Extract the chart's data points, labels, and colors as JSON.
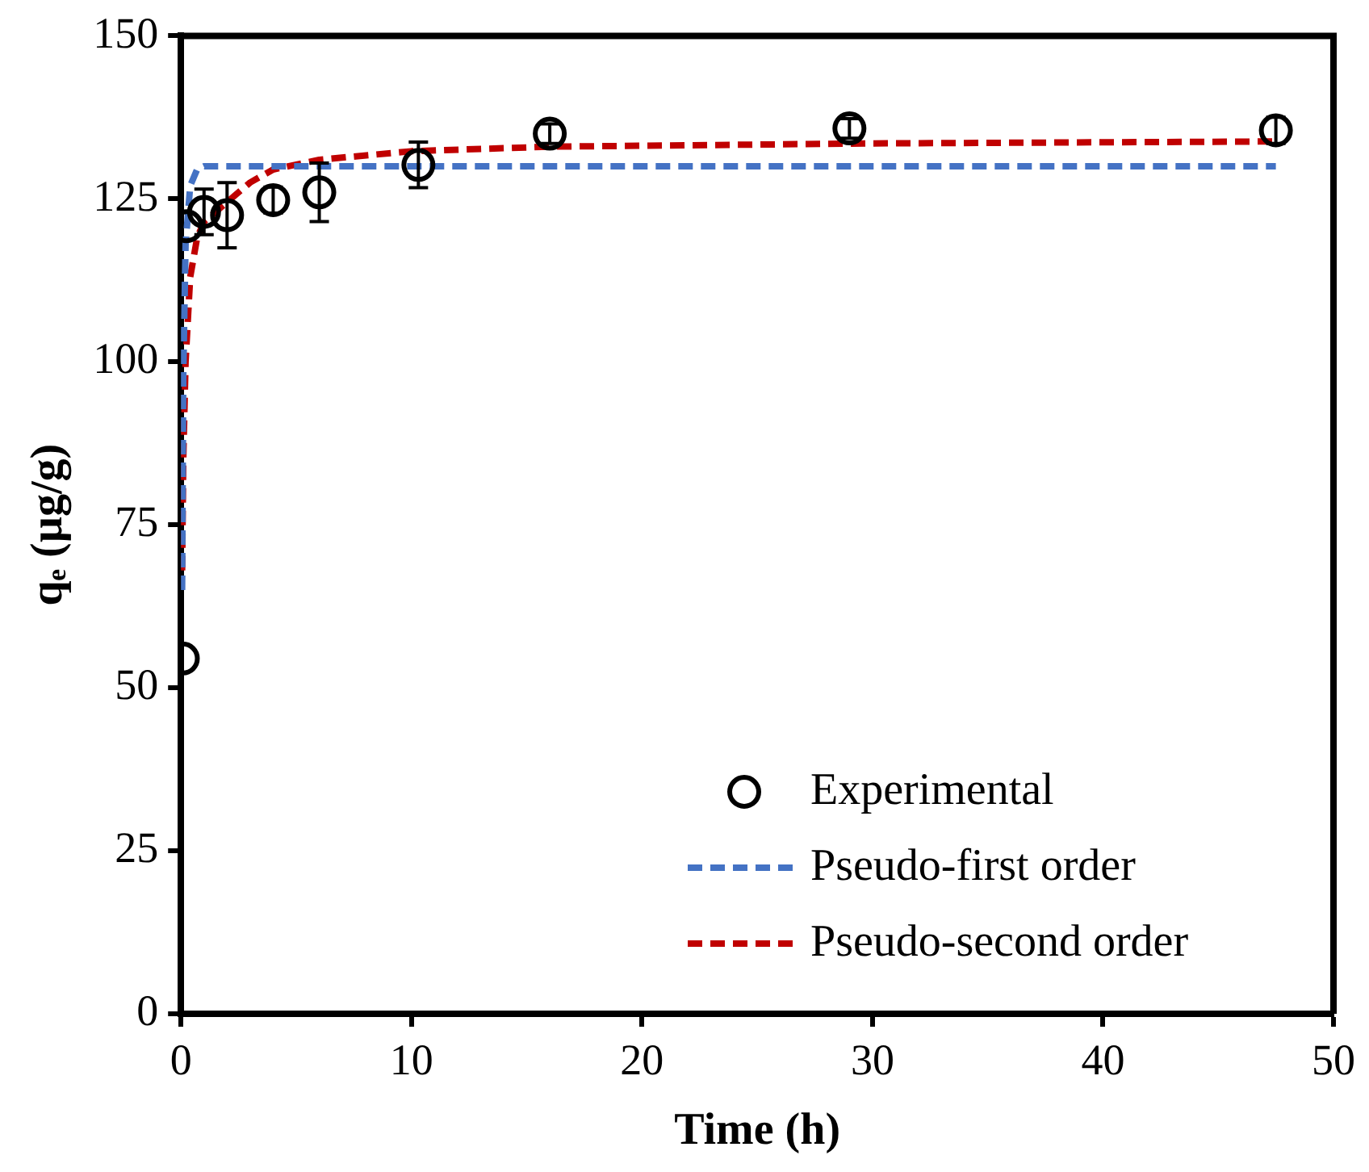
{
  "chart_data": {
    "type": "scatter",
    "xlabel": "Time (h)",
    "ylabel": "qₑ (µg/g)",
    "xlim": [
      0,
      50
    ],
    "xticks": [
      0,
      10,
      20,
      30,
      40,
      50
    ],
    "ylim": [
      0,
      150
    ],
    "yticks": [
      0,
      25,
      50,
      75,
      100,
      125,
      150
    ],
    "grid": false,
    "legend": "bottom right",
    "series": [
      {
        "name": "Experimental",
        "marker": "circle",
        "color": "#000000",
        "x": [
          0.08,
          0.25,
          1,
          2,
          4,
          6,
          10.3,
          16,
          29,
          47.5
        ],
        "values": [
          54.5,
          120.8,
          123,
          122.5,
          124.8,
          126,
          130.2,
          135,
          135.8,
          135.5
        ],
        "errors": [
          null,
          null,
          3.5,
          5,
          2,
          4.5,
          3.5,
          1.5,
          1.5,
          2
        ]
      },
      {
        "name": "Pseudo-first order",
        "type": "line",
        "line_style": "dashed",
        "marker": "none",
        "color": "#4472c4",
        "x": [
          0.05,
          0.1,
          0.2,
          0.4,
          0.7,
          1,
          47.5
        ],
        "values": [
          65,
          98,
          118,
          127,
          129.5,
          130,
          130
        ]
      },
      {
        "name": "Pseudo-second order",
        "type": "line",
        "line_style": "dashed",
        "marker": "none",
        "color": "#c00000",
        "x": [
          0.05,
          0.1,
          0.2,
          0.4,
          0.7,
          1,
          2,
          3,
          4,
          6,
          10,
          16,
          30,
          47.5
        ],
        "values": [
          68,
          85,
          100,
          113,
          119,
          121.5,
          124.5,
          127.5,
          129.5,
          131,
          132.3,
          133,
          133.5,
          133.8
        ]
      }
    ]
  }
}
